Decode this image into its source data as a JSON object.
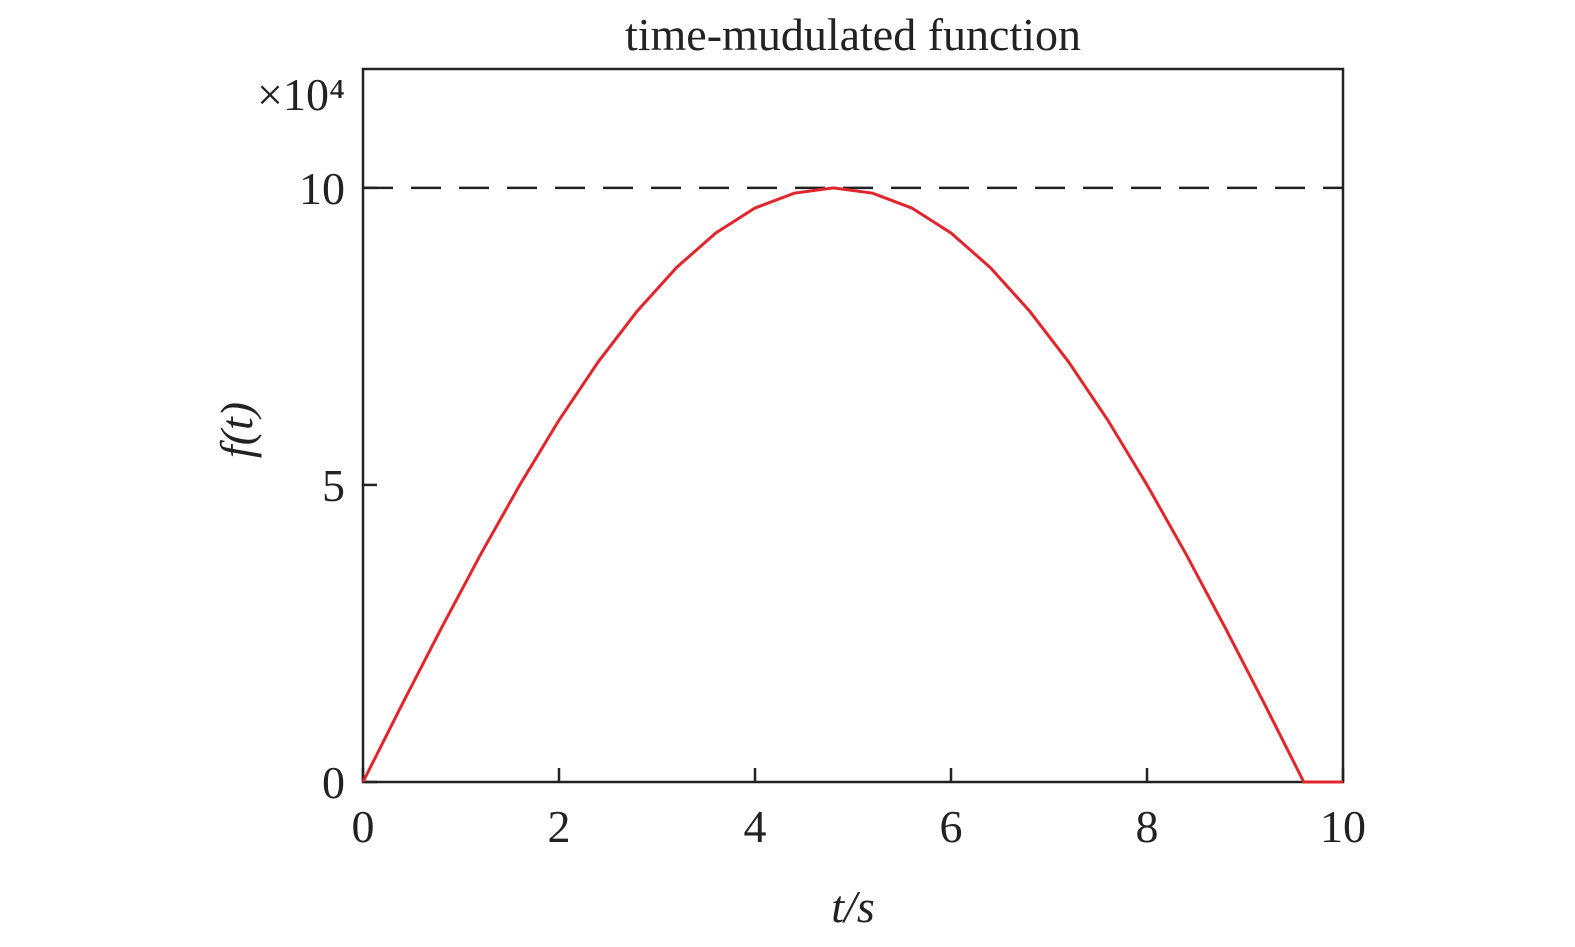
{
  "chart_data": {
    "type": "line",
    "title": "time-mudulated function",
    "x_label": "t/s",
    "y_label": "f(t)",
    "y_multiplier": "×10⁴",
    "x": [
      0,
      0.4,
      0.8,
      1.2,
      1.6,
      2.0,
      2.4,
      2.8,
      3.2,
      3.6,
      4.0,
      4.4,
      4.8,
      5.2,
      5.6,
      6.0,
      6.4,
      6.8,
      7.2,
      7.6,
      8.0,
      8.4,
      8.8,
      9.2,
      9.6,
      10
    ],
    "series": [
      {
        "name": "f(t)",
        "color": "#e0262c",
        "values": [
          0,
          1.31,
          2.59,
          3.83,
          5.0,
          6.09,
          7.07,
          7.93,
          8.66,
          9.24,
          9.66,
          9.91,
          10,
          9.91,
          9.66,
          9.24,
          8.66,
          7.93,
          7.07,
          6.09,
          5.0,
          3.83,
          2.59,
          1.31,
          0,
          0
        ]
      }
    ],
    "reference_line": 10,
    "xlim": [
      0,
      10
    ],
    "xticks": [
      0,
      2,
      4,
      6,
      8,
      10
    ],
    "ylim": [
      0,
      12
    ],
    "yticks": [
      0,
      5,
      10
    ],
    "grid": false
  }
}
